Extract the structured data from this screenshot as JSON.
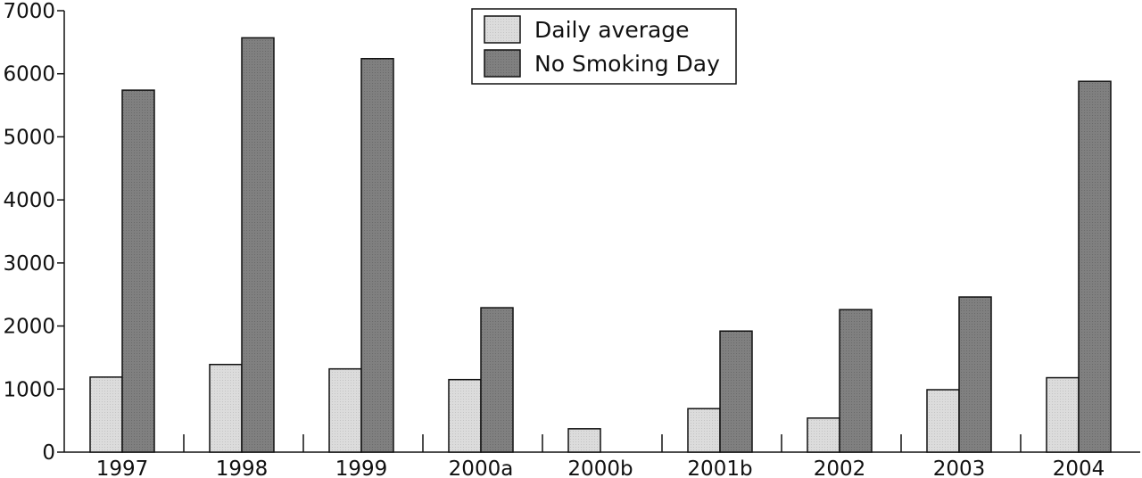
{
  "chart_data": {
    "type": "bar",
    "categories": [
      "1997",
      "1998",
      "1999",
      "2000a",
      "2000b",
      "2001b",
      "2002",
      "2003",
      "2004"
    ],
    "series": [
      {
        "name": "Daily average",
        "color": "#d9d9d9",
        "values": [
          1190,
          1390,
          1320,
          1150,
          370,
          690,
          540,
          990,
          1180
        ]
      },
      {
        "name": "No Smoking Day",
        "color": "#7f7f7f",
        "values": [
          5740,
          6570,
          6240,
          2290,
          null,
          1920,
          2260,
          2460,
          5880
        ]
      }
    ],
    "ylim": [
      0,
      7000
    ],
    "yticks": [
      0,
      1000,
      2000,
      3000,
      4000,
      5000,
      6000,
      7000
    ],
    "legend_position": "top-center",
    "grid": false
  }
}
